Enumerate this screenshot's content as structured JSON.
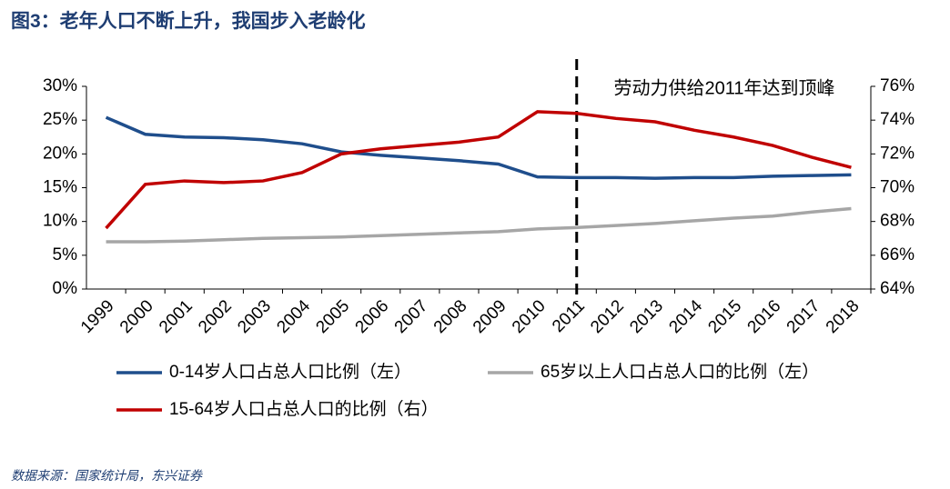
{
  "chart_data": {
    "type": "line",
    "title": "图3：老年人口不断上升，我国步入老龄化",
    "source": "数据来源：国家统计局，东兴证券",
    "annotation": "劳动力供给2011年达到顶峰",
    "reference_line": {
      "x": "2011",
      "style": "dashed"
    },
    "categories": [
      "1999",
      "2000",
      "2001",
      "2002",
      "2003",
      "2004",
      "2005",
      "2006",
      "2007",
      "2008",
      "2009",
      "2010",
      "2011",
      "2012",
      "2013",
      "2014",
      "2015",
      "2016",
      "2017",
      "2018"
    ],
    "series": [
      {
        "name": "0-14岁人口占总人口比例（左）",
        "color": "#1f4e8c",
        "axis": "y",
        "values": [
          25.4,
          22.9,
          22.5,
          22.4,
          22.1,
          21.5,
          20.3,
          19.8,
          19.4,
          19.0,
          18.5,
          16.6,
          16.5,
          16.5,
          16.4,
          16.5,
          16.5,
          16.7,
          16.8,
          16.9
        ]
      },
      {
        "name": "65岁以上人口占总人口的比例（左）",
        "color": "#a6a6a6",
        "axis": "y",
        "values": [
          7.0,
          7.0,
          7.1,
          7.3,
          7.5,
          7.6,
          7.7,
          7.9,
          8.1,
          8.3,
          8.5,
          8.9,
          9.1,
          9.4,
          9.7,
          10.1,
          10.5,
          10.8,
          11.4,
          11.9
        ]
      },
      {
        "name": "15-64岁人口占总人口的比例（右）",
        "color": "#c00000",
        "axis": "y2",
        "values": [
          67.6,
          70.2,
          70.4,
          70.3,
          70.4,
          70.9,
          72.0,
          72.3,
          72.5,
          72.7,
          73.0,
          74.5,
          74.4,
          74.1,
          73.9,
          73.4,
          73.0,
          72.5,
          71.8,
          71.2
        ]
      }
    ],
    "ylim": [
      0,
      30
    ],
    "yticks": [
      {
        "value": 0,
        "label": "0%"
      },
      {
        "value": 5,
        "label": "5%"
      },
      {
        "value": 10,
        "label": "10%"
      },
      {
        "value": 15,
        "label": "15%"
      },
      {
        "value": 20,
        "label": "20%"
      },
      {
        "value": 25,
        "label": "25%"
      },
      {
        "value": 30,
        "label": "30%"
      }
    ],
    "y2lim": [
      64,
      76
    ],
    "y2ticks": [
      {
        "value": 64,
        "label": "64%"
      },
      {
        "value": 66,
        "label": "66%"
      },
      {
        "value": 68,
        "label": "68%"
      },
      {
        "value": 70,
        "label": "70%"
      },
      {
        "value": 72,
        "label": "72%"
      },
      {
        "value": 74,
        "label": "74%"
      },
      {
        "value": 76,
        "label": "76%"
      }
    ],
    "grid": false
  }
}
